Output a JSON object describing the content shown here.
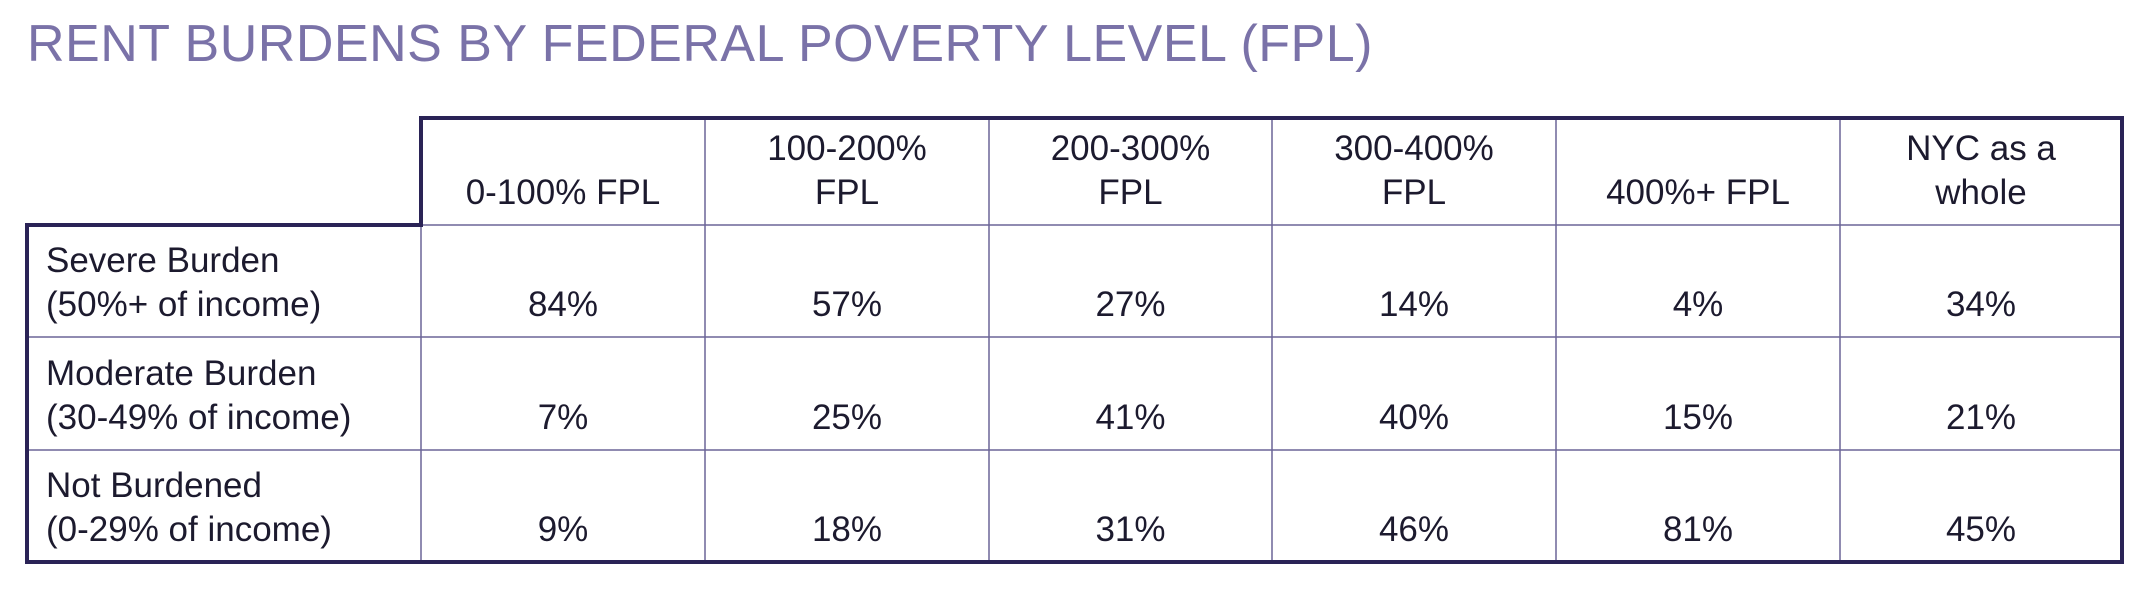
{
  "title": "RENT BURDENS BY FEDERAL POVERTY LEVEL (FPL)",
  "table": {
    "columns": [
      [
        "0-100% FPL"
      ],
      [
        "100-200%",
        "FPL"
      ],
      [
        "200-300%",
        "FPL"
      ],
      [
        "300-400%",
        "FPL"
      ],
      [
        "400%+ FPL"
      ],
      [
        "NYC as a",
        "whole"
      ]
    ],
    "rows": [
      {
        "label": [
          "Severe Burden",
          "(50%+ of income)"
        ],
        "values": [
          "84%",
          "57%",
          "27%",
          "14%",
          "4%",
          "34%"
        ]
      },
      {
        "label": [
          "Moderate Burden",
          "(30-49% of income)"
        ],
        "values": [
          "7%",
          "25%",
          "41%",
          "40%",
          "15%",
          "21%"
        ]
      },
      {
        "label": [
          "Not Burdened",
          "(0-29% of income)"
        ],
        "values": [
          "9%",
          "18%",
          "31%",
          "46%",
          "81%",
          "45%"
        ]
      }
    ]
  }
}
